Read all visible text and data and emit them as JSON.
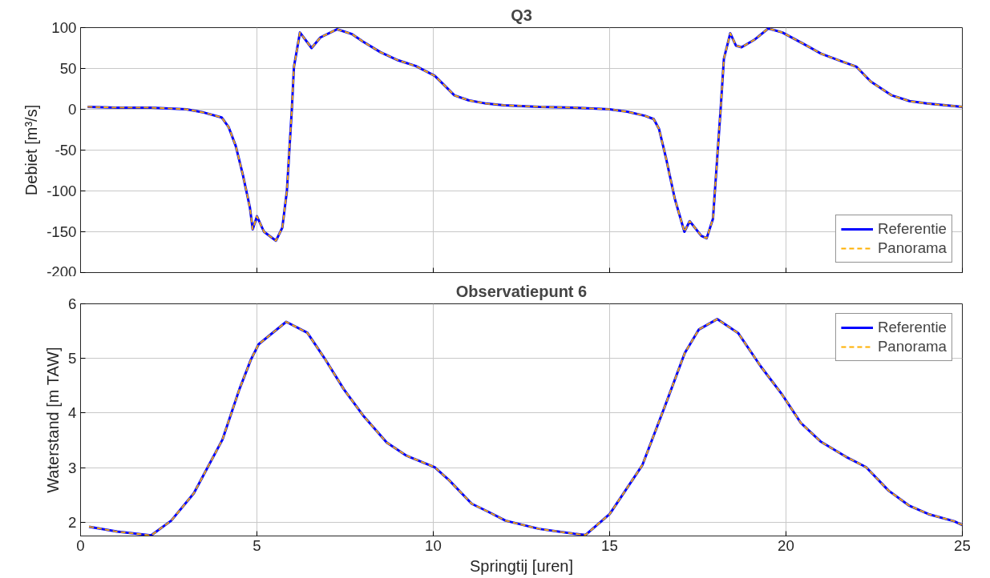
{
  "chart_data": [
    {
      "type": "line",
      "title": "Q3",
      "ylabel": "Debiet [m³/s]",
      "x": [
        0.2,
        1,
        2,
        3,
        3.5,
        4,
        4.2,
        4.4,
        4.6,
        4.8,
        4.88,
        5.0,
        5.2,
        5.54,
        5.72,
        5.85,
        5.99,
        6.05,
        6.22,
        6.55,
        6.8,
        7.27,
        7.7,
        8,
        8.5,
        9,
        9.5,
        10.04,
        10.3,
        10.6,
        11,
        11.5,
        12,
        13,
        14,
        15,
        15.5,
        16,
        16.25,
        16.4,
        16.6,
        16.85,
        17.12,
        17.27,
        17.6,
        17.75,
        17.93,
        18.05,
        18.15,
        18.24,
        18.42,
        18.58,
        18.74,
        19.1,
        19.5,
        19.9,
        20.5,
        21,
        21.5,
        22,
        22.4,
        23.0,
        23.5,
        24,
        25
      ],
      "series": [
        {
          "name": "Referentie",
          "color": "#0000ff",
          "line_style": "solid",
          "values": [
            3,
            2,
            2,
            0,
            -4,
            -10,
            -22,
            -45,
            -80,
            -120,
            -147,
            -131,
            -150,
            -161,
            -145,
            -100,
            0,
            52,
            94,
            75,
            88,
            98,
            92,
            83,
            70,
            60,
            53,
            41,
            30,
            17,
            11,
            7,
            5,
            3,
            2,
            0,
            -3,
            -8,
            -12,
            -24,
            -60,
            -110,
            -150,
            -137,
            -155,
            -158,
            -134,
            -60,
            2,
            62,
            93,
            78,
            76,
            85,
            99,
            94,
            80,
            68,
            60,
            52,
            34,
            17,
            10,
            7,
            3
          ]
        },
        {
          "name": "Panorama",
          "color": "#ffb000",
          "line_style": "dashed",
          "values": [
            3,
            2,
            2,
            0,
            -4,
            -10,
            -22,
            -45,
            -80,
            -120,
            -147,
            -131,
            -150,
            -161,
            -145,
            -100,
            0,
            52,
            94,
            75,
            88,
            98,
            92,
            83,
            70,
            60,
            53,
            41,
            30,
            17,
            11,
            7,
            5,
            3,
            2,
            0,
            -3,
            -8,
            -12,
            -24,
            -60,
            -110,
            -150,
            -137,
            -155,
            -158,
            -134,
            -60,
            2,
            62,
            93,
            78,
            76,
            85,
            99,
            94,
            80,
            68,
            60,
            52,
            34,
            17,
            10,
            7,
            3
          ]
        }
      ],
      "xlim": [
        0,
        25
      ],
      "xticks": [
        0,
        5,
        10,
        15,
        20,
        25
      ],
      "ylim": [
        -200,
        100
      ],
      "yticks": [
        -200,
        -150,
        -100,
        -50,
        0,
        50,
        100
      ],
      "grid": true,
      "legend": "bottom right",
      "tick_labels": "y"
    },
    {
      "type": "line",
      "title": "Observatiepunt 6",
      "xlabel": "Springtij [uren]",
      "ylabel": "Waterstand [m TAW]",
      "x": [
        0.24,
        1.04,
        2.0,
        2.57,
        3.21,
        4.02,
        4.5,
        4.83,
        5.05,
        5.83,
        6.43,
        6.91,
        7.47,
        8.03,
        8.68,
        9.24,
        10.04,
        10.45,
        11.09,
        11.57,
        12.05,
        13,
        14,
        14.32,
        15.0,
        15.93,
        16.57,
        17.13,
        17.53,
        18.05,
        18.65,
        19.29,
        19.9,
        20.42,
        20.98,
        21.7,
        22.27,
        22.91,
        23.48,
        24.04,
        24.77,
        25
      ],
      "series": [
        {
          "name": "Referentie",
          "color": "#0000ff",
          "line_style": "solid",
          "values": [
            1.92,
            1.83,
            1.76,
            2.03,
            2.53,
            3.51,
            4.43,
            4.98,
            5.26,
            5.67,
            5.47,
            5.01,
            4.43,
            3.94,
            3.46,
            3.22,
            3.01,
            2.77,
            2.34,
            2.19,
            2.03,
            1.88,
            1.79,
            1.77,
            2.15,
            3.05,
            4.13,
            5.1,
            5.53,
            5.72,
            5.46,
            4.85,
            4.33,
            3.82,
            3.48,
            3.2,
            3.01,
            2.58,
            2.31,
            2.15,
            2.02,
            1.95
          ]
        },
        {
          "name": "Panorama",
          "color": "#ffb000",
          "line_style": "dashed",
          "values": [
            1.92,
            1.83,
            1.76,
            2.03,
            2.53,
            3.51,
            4.43,
            4.98,
            5.26,
            5.67,
            5.47,
            5.01,
            4.43,
            3.94,
            3.46,
            3.22,
            3.01,
            2.77,
            2.34,
            2.19,
            2.03,
            1.88,
            1.79,
            1.77,
            2.15,
            3.05,
            4.13,
            5.1,
            5.53,
            5.72,
            5.46,
            4.85,
            4.33,
            3.82,
            3.48,
            3.2,
            3.01,
            2.58,
            2.31,
            2.15,
            2.02,
            1.95
          ]
        }
      ],
      "xlim": [
        0,
        25
      ],
      "xticks": [
        0,
        5,
        10,
        15,
        20,
        25
      ],
      "ylim": [
        1.75,
        6
      ],
      "yticks": [
        2,
        3,
        4,
        5,
        6
      ],
      "grid": true,
      "legend": "top right"
    }
  ]
}
